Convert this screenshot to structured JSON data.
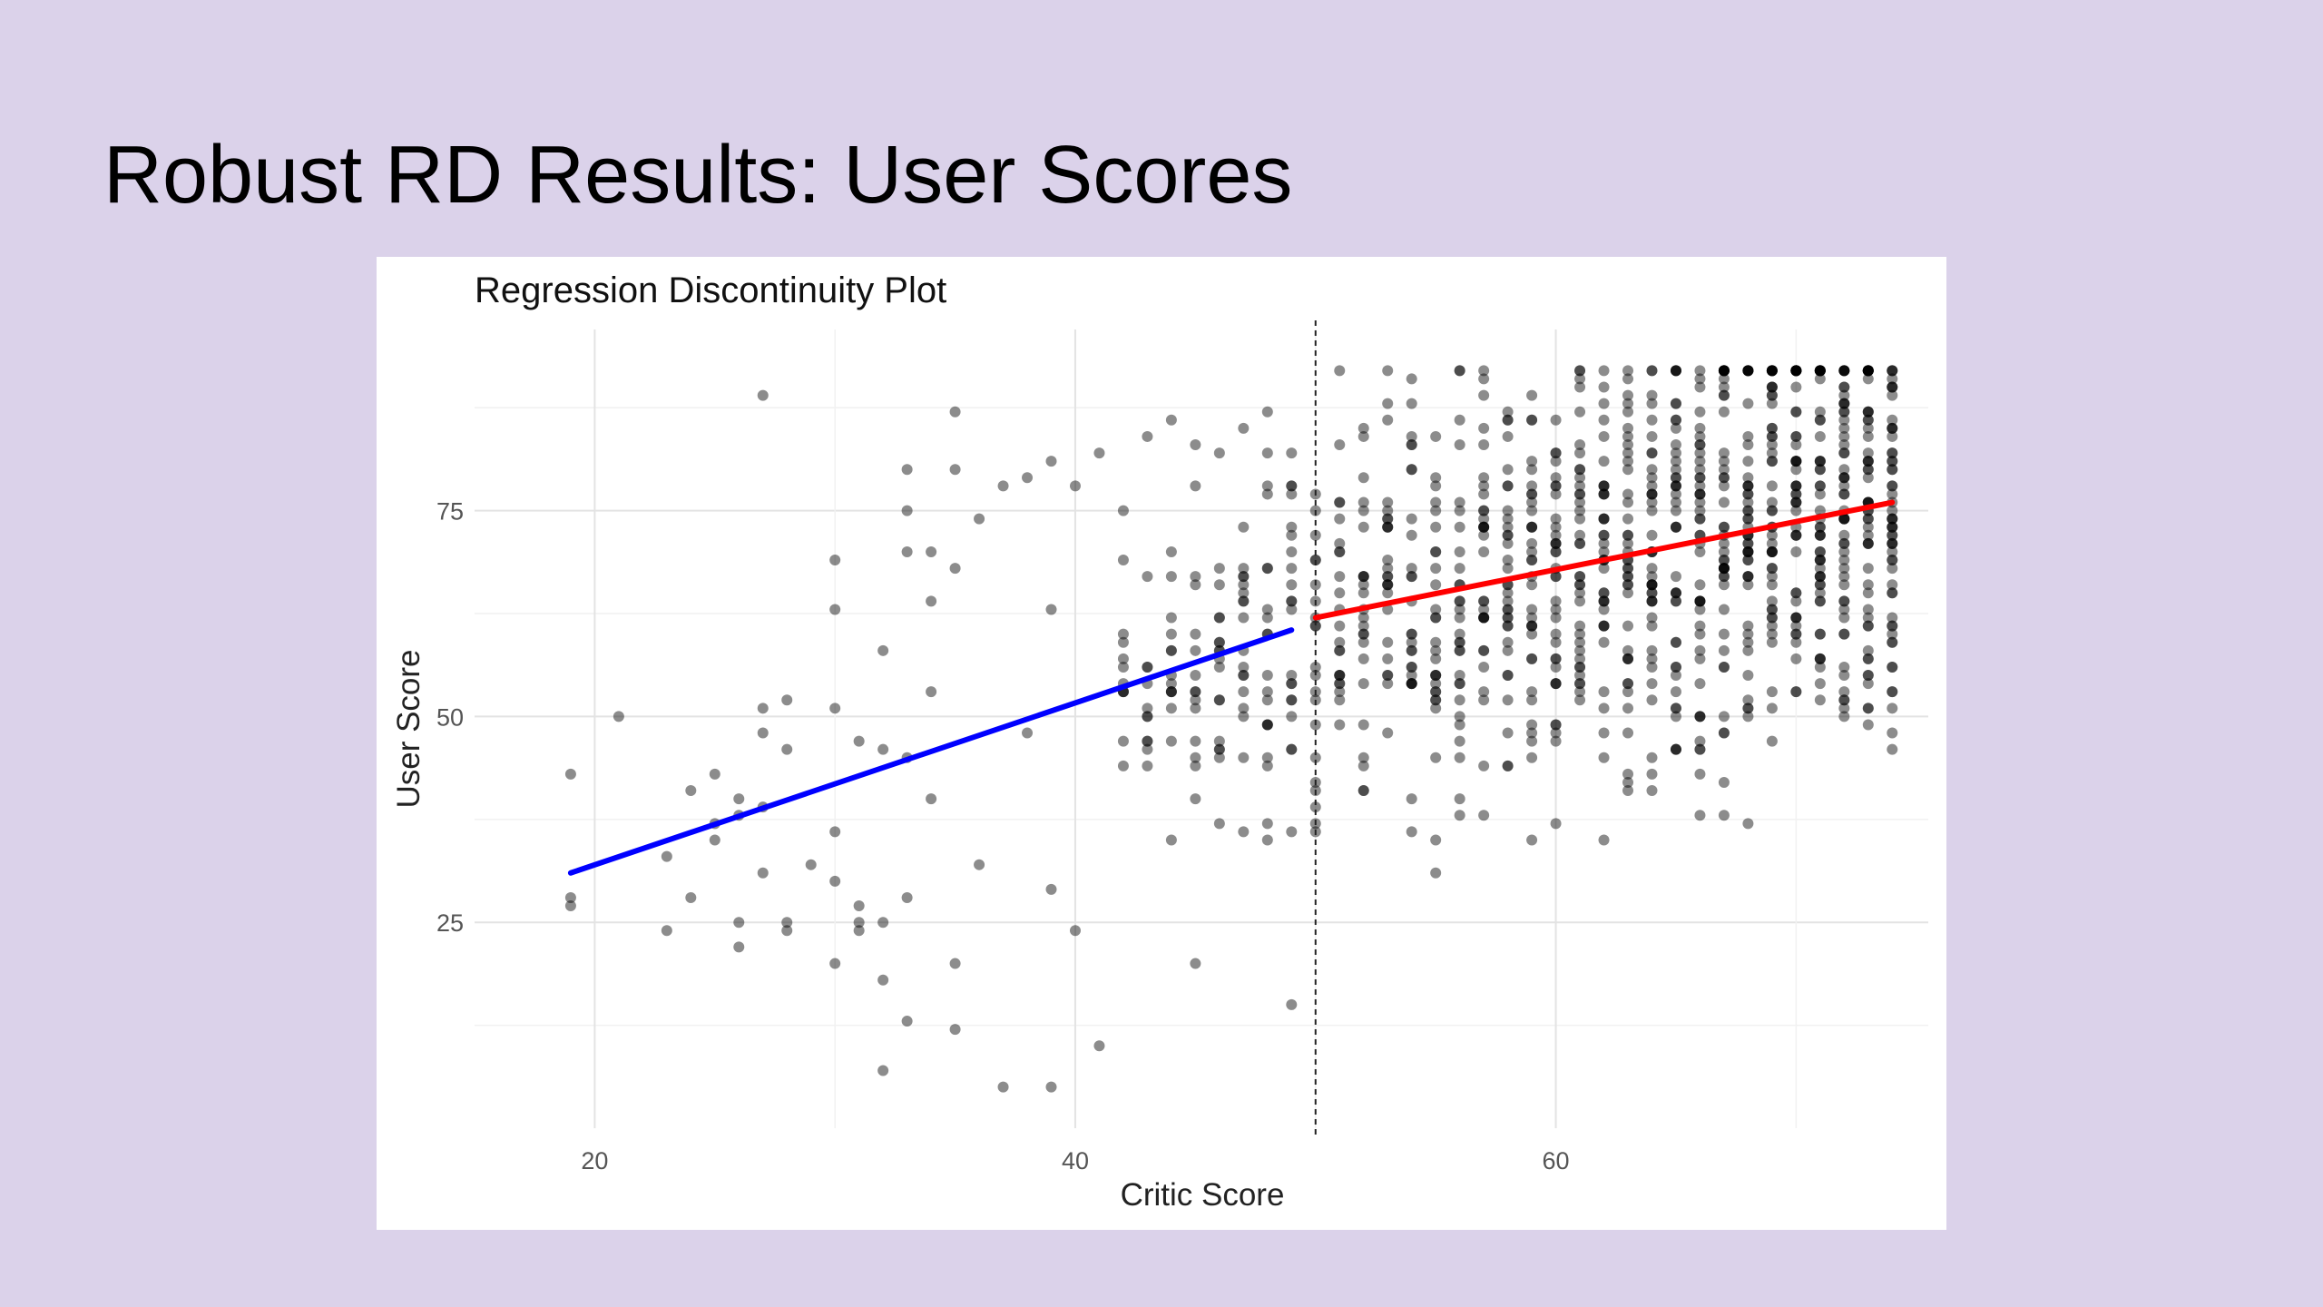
{
  "slide": {
    "title": "Robust RD Results: User Scores"
  },
  "chart_data": {
    "type": "scatter",
    "title": "Regression Discontinuity Plot",
    "xlabel": "Critic Score",
    "ylabel": "User Score",
    "xlim": [
      15,
      75.5
    ],
    "ylim": [
      0,
      97
    ],
    "x_ticks": [
      20,
      40,
      60
    ],
    "y_ticks": [
      25,
      50,
      75
    ],
    "x_grid_minor": [
      30,
      50,
      70
    ],
    "y_grid_minor": [
      12.5,
      37.5,
      62.5,
      87.5
    ],
    "grid": true,
    "cutoff": 50,
    "cutoff_style": "dashed",
    "point_color": "#000000",
    "point_opacity": 0.45,
    "series": [
      {
        "kind": "fit",
        "color": "#0000ff",
        "x": [
          19,
          49
        ],
        "y": [
          31,
          60.5
        ]
      },
      {
        "kind": "fit",
        "color": "#ff0000",
        "x": [
          50,
          74
        ],
        "y": [
          62,
          76
        ]
      }
    ],
    "points": {
      "x": [
        19,
        19,
        19,
        21,
        23,
        23,
        24,
        24,
        25,
        25,
        25,
        26,
        26,
        26,
        26,
        27,
        27,
        27,
        27,
        27,
        28,
        28,
        28,
        28,
        29,
        30,
        30,
        30,
        30,
        30,
        30,
        31,
        31,
        31,
        31,
        32,
        32,
        32,
        32,
        32,
        33,
        33,
        33,
        33,
        33,
        33,
        34,
        34,
        34,
        34,
        35,
        35,
        35,
        35,
        35,
        36,
        36,
        37,
        37,
        38,
        38,
        39,
        39,
        39,
        39,
        40,
        40,
        41,
        41,
        42,
        42,
        43,
        44,
        44,
        45,
        45,
        46,
        46,
        47,
        47,
        48,
        48,
        49,
        49
      ],
      "y": [
        43,
        28,
        27,
        50,
        33,
        24,
        41,
        28,
        43,
        35,
        37,
        40,
        38,
        25,
        22,
        89,
        51,
        48,
        31,
        39,
        52,
        46,
        25,
        24,
        32,
        69,
        63,
        51,
        36,
        30,
        20,
        47,
        25,
        27,
        24,
        58,
        46,
        18,
        7,
        25,
        80,
        75,
        70,
        45,
        28,
        13,
        70,
        64,
        53,
        40,
        87,
        80,
        68,
        12,
        20,
        74,
        32,
        78,
        5,
        79,
        48,
        81,
        63,
        5,
        29,
        78,
        24,
        82,
        10,
        75,
        44,
        84,
        86,
        47,
        83,
        20,
        82,
        46,
        85,
        36,
        87,
        44,
        15,
        52
      ]
    },
    "dense_band": {
      "x_range": [
        42,
        74
      ],
      "y_range": [
        22,
        92
      ]
    }
  }
}
